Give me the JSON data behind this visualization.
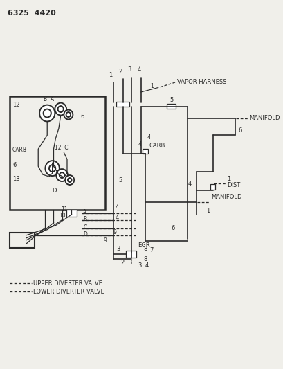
{
  "title": "6325  4420",
  "bg_color": "#f0efea",
  "line_color": "#2a2a2a",
  "lw_main": 1.8,
  "lw_med": 1.2,
  "lw_thin": 0.9,
  "labels": {
    "vapor_harness": "VAPOR HARNESS",
    "manifold_top": "MANIFOLD",
    "manifold_mid": "MANIFOLD",
    "carb": "CARB",
    "dist": "DIST",
    "egr": "EGR",
    "upper_div": "UPPER DIVERTER VALVE",
    "lower_div": "LOWER DIVERTER VALVE"
  }
}
